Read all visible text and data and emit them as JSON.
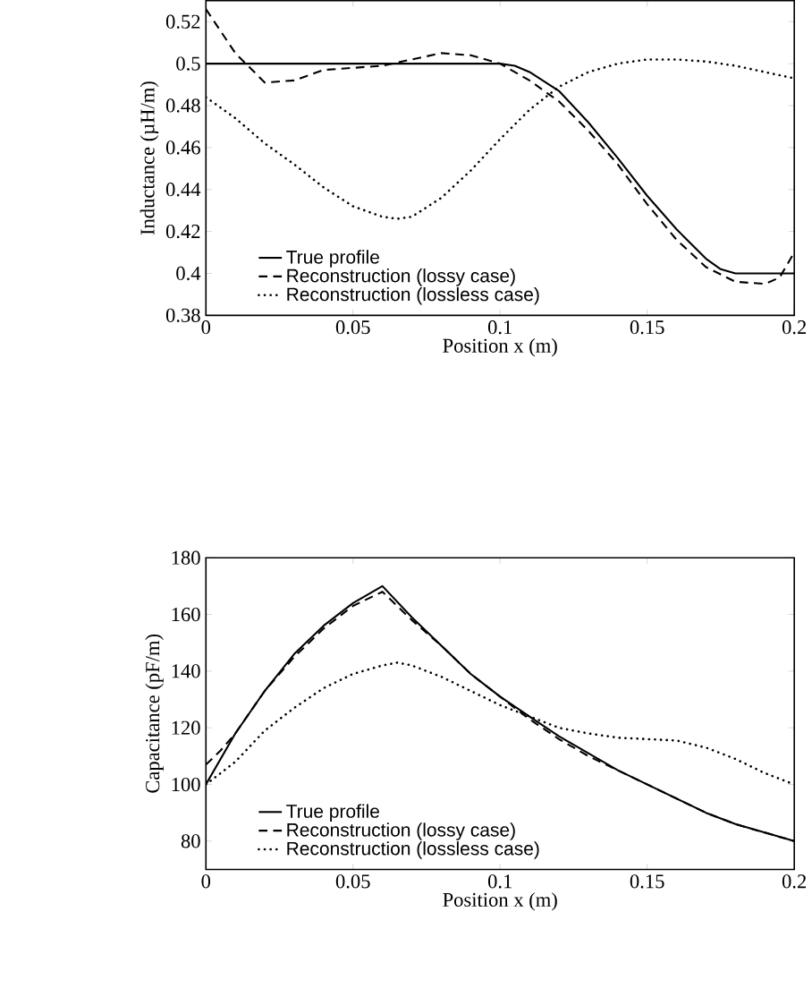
{
  "chart_data": [
    {
      "type": "line",
      "xlabel": "Position x (m)",
      "ylabel": "Inductance (µH/m)",
      "xlim": [
        0,
        0.2
      ],
      "ylim": [
        0.38,
        0.53
      ],
      "xticks": [
        0,
        0.05,
        0.1,
        0.15,
        0.2
      ],
      "yticks": [
        0.38,
        0.4,
        0.42,
        0.44,
        0.46,
        0.48,
        0.5,
        0.52
      ],
      "legend": "bottom left",
      "marker": "none",
      "series": [
        {
          "name": "True profile",
          "color": "#000000",
          "line_style": "solid",
          "x": [
            0,
            0.1,
            0.105,
            0.11,
            0.12,
            0.13,
            0.14,
            0.15,
            0.16,
            0.17,
            0.175,
            0.18,
            0.2
          ],
          "values": [
            0.5,
            0.5,
            0.499,
            0.496,
            0.487,
            0.472,
            0.455,
            0.437,
            0.421,
            0.407,
            0.402,
            0.4,
            0.4
          ]
        },
        {
          "name": "Reconstruction (lossy case)",
          "color": "#000000",
          "line_style": "dashed",
          "x": [
            0,
            0.01,
            0.02,
            0.03,
            0.04,
            0.05,
            0.06,
            0.07,
            0.08,
            0.09,
            0.1,
            0.11,
            0.12,
            0.13,
            0.14,
            0.15,
            0.16,
            0.17,
            0.18,
            0.19,
            0.195,
            0.2
          ],
          "values": [
            0.526,
            0.505,
            0.491,
            0.492,
            0.497,
            0.498,
            0.499,
            0.502,
            0.505,
            0.504,
            0.5,
            0.492,
            0.482,
            0.468,
            0.452,
            0.433,
            0.416,
            0.403,
            0.396,
            0.395,
            0.398,
            0.41
          ]
        },
        {
          "name": "Reconstruction (lossless case)",
          "color": "#000000",
          "line_style": "dotted",
          "x": [
            0,
            0.01,
            0.02,
            0.03,
            0.04,
            0.05,
            0.06,
            0.065,
            0.07,
            0.08,
            0.09,
            0.1,
            0.11,
            0.12,
            0.13,
            0.14,
            0.15,
            0.16,
            0.17,
            0.18,
            0.19,
            0.2
          ],
          "values": [
            0.484,
            0.474,
            0.462,
            0.452,
            0.441,
            0.432,
            0.427,
            0.426,
            0.427,
            0.436,
            0.449,
            0.464,
            0.478,
            0.489,
            0.496,
            0.5,
            0.502,
            0.502,
            0.501,
            0.499,
            0.496,
            0.493
          ]
        }
      ]
    },
    {
      "type": "line",
      "xlabel": "Position x (m)",
      "ylabel": "Capacitance (pF/m)",
      "xlim": [
        0,
        0.2
      ],
      "ylim": [
        70,
        180
      ],
      "xticks": [
        0,
        0.05,
        0.1,
        0.15,
        0.2
      ],
      "yticks": [
        80,
        100,
        120,
        140,
        160,
        180
      ],
      "legend": "bottom left",
      "marker": "none",
      "series": [
        {
          "name": "True profile",
          "color": "#000000",
          "line_style": "solid",
          "x": [
            0,
            0.01,
            0.02,
            0.03,
            0.04,
            0.05,
            0.06,
            0.07,
            0.08,
            0.09,
            0.1,
            0.11,
            0.12,
            0.13,
            0.14,
            0.15,
            0.16,
            0.17,
            0.18,
            0.19,
            0.2
          ],
          "values": [
            100,
            118,
            133,
            146,
            156,
            164,
            170,
            159,
            149,
            139,
            131,
            124,
            117,
            111,
            105,
            100,
            95,
            90,
            86,
            83,
            80
          ]
        },
        {
          "name": "Reconstruction (lossy case)",
          "color": "#000000",
          "line_style": "dashed",
          "x": [
            0,
            0.005,
            0.01,
            0.02,
            0.03,
            0.04,
            0.05,
            0.06,
            0.07,
            0.08,
            0.09,
            0.1,
            0.11,
            0.12,
            0.13,
            0.14,
            0.15,
            0.16,
            0.17,
            0.18,
            0.19,
            0.2
          ],
          "values": [
            107,
            112,
            118,
            133,
            145,
            155,
            163,
            168,
            158,
            149,
            139,
            131,
            123,
            116,
            110,
            105,
            100,
            95,
            90,
            86,
            83,
            80
          ]
        },
        {
          "name": "Reconstruction (lossless case)",
          "color": "#000000",
          "line_style": "dotted",
          "x": [
            0,
            0.01,
            0.02,
            0.03,
            0.04,
            0.05,
            0.06,
            0.065,
            0.07,
            0.08,
            0.09,
            0.1,
            0.11,
            0.12,
            0.13,
            0.14,
            0.15,
            0.16,
            0.17,
            0.18,
            0.19,
            0.2
          ],
          "values": [
            100,
            108,
            119,
            127,
            134,
            139,
            142,
            143,
            142,
            138,
            133,
            128,
            124,
            120,
            118,
            116.5,
            116,
            115.5,
            113,
            109,
            104,
            100
          ]
        }
      ]
    }
  ]
}
